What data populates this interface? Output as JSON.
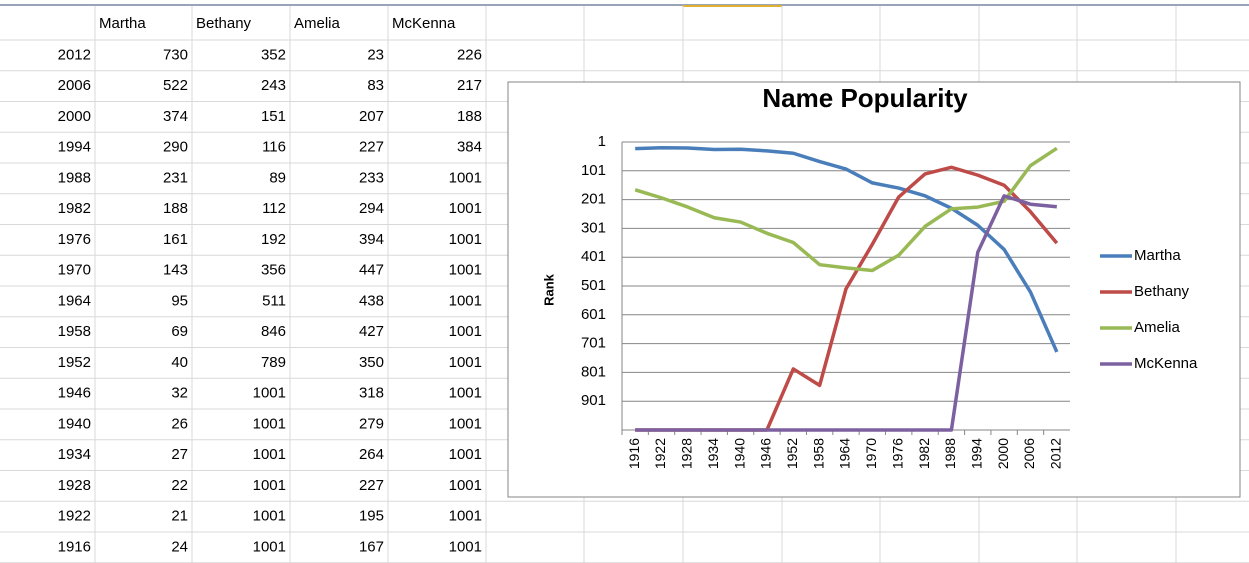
{
  "table": {
    "headers": [
      "Martha",
      "Bethany",
      "Amelia",
      "McKenna"
    ],
    "rows": [
      [
        2012,
        730,
        352,
        23,
        226
      ],
      [
        2006,
        522,
        243,
        83,
        217
      ],
      [
        2000,
        374,
        151,
        207,
        188
      ],
      [
        1994,
        290,
        116,
        227,
        384
      ],
      [
        1988,
        231,
        89,
        233,
        1001
      ],
      [
        1982,
        188,
        112,
        294,
        1001
      ],
      [
        1976,
        161,
        192,
        394,
        1001
      ],
      [
        1970,
        143,
        356,
        447,
        1001
      ],
      [
        1964,
        95,
        511,
        438,
        1001
      ],
      [
        1958,
        69,
        846,
        427,
        1001
      ],
      [
        1952,
        40,
        789,
        350,
        1001
      ],
      [
        1946,
        32,
        1001,
        318,
        1001
      ],
      [
        1940,
        26,
        1001,
        279,
        1001
      ],
      [
        1934,
        27,
        1001,
        264,
        1001
      ],
      [
        1928,
        22,
        1001,
        227,
        1001
      ],
      [
        1922,
        21,
        1001,
        195,
        1001
      ],
      [
        1916,
        24,
        1001,
        167,
        1001
      ]
    ]
  },
  "chart_data": {
    "type": "line",
    "title": "Name Popularity",
    "y_label": "Rank",
    "categories": [
      "1916",
      "1922",
      "1928",
      "1934",
      "1940",
      "1946",
      "1952",
      "1958",
      "1964",
      "1970",
      "1976",
      "1982",
      "1988",
      "1994",
      "2000",
      "2006",
      "2012"
    ],
    "series": [
      {
        "name": "Martha",
        "color": "#4a7ebb",
        "values": [
          24,
          21,
          22,
          27,
          26,
          32,
          40,
          69,
          95,
          143,
          161,
          188,
          231,
          290,
          374,
          522,
          730
        ]
      },
      {
        "name": "Bethany",
        "color": "#be4b48",
        "values": [
          1001,
          1001,
          1001,
          1001,
          1001,
          1001,
          789,
          846,
          511,
          356,
          192,
          112,
          89,
          116,
          151,
          243,
          352
        ]
      },
      {
        "name": "Amelia",
        "color": "#98b954",
        "values": [
          167,
          195,
          227,
          264,
          279,
          318,
          350,
          427,
          438,
          447,
          394,
          294,
          233,
          227,
          207,
          83,
          23
        ]
      },
      {
        "name": "McKenna",
        "color": "#7d60a0",
        "values": [
          1001,
          1001,
          1001,
          1001,
          1001,
          1001,
          1001,
          1001,
          1001,
          1001,
          1001,
          1001,
          1001,
          384,
          188,
          217,
          226
        ]
      }
    ],
    "ylim": [
      1,
      1001
    ],
    "y_reversed": true,
    "yticks": [
      1,
      101,
      201,
      301,
      401,
      501,
      601,
      701,
      801,
      901
    ],
    "grid": true,
    "legend": "right"
  }
}
